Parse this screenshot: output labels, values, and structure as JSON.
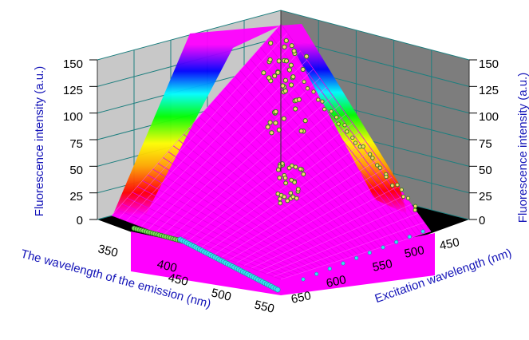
{
  "chart_data": {
    "type": "surface3d",
    "x_axis": {
      "label": "The wavelength of the emission (nm)",
      "ticks": [
        "350",
        "400",
        "450",
        "500",
        "550"
      ],
      "range": [
        330,
        565
      ]
    },
    "y_axis": {
      "label": "Excitation wavelength (nm)",
      "ticks": [
        "450",
        "500",
        "550",
        "600",
        "650"
      ],
      "range": [
        430,
        660
      ]
    },
    "z_axis": {
      "label_left": "Fluorescence intensity (a.u.)",
      "label_right": "Fluorescence intensity (a.u.)",
      "ticks": [
        "0",
        "25",
        "50",
        "75",
        "100",
        "125",
        "150"
      ],
      "range": [
        0,
        150
      ]
    },
    "grid": true,
    "colormap": [
      "#ff00ff",
      "#ff0000",
      "#ffa500",
      "#ffff00",
      "#00ff00",
      "#00ffff",
      "#0000ff",
      "#ff00ff"
    ],
    "colors": {
      "surface": "#ff00ff",
      "wall_left": "#c8c8c8",
      "wall_right": "#7d7d7d",
      "floor": "#000000",
      "wall_grid": "#1e7f7f",
      "axis_title": "#1414b8",
      "scatter_edge": "#2e7d20",
      "scatter_fill": "#f5d96b",
      "rayleigh_line": "#38e0f0"
    },
    "peaks": [
      {
        "emission": 515,
        "excitation": 470,
        "intensity": 148
      },
      {
        "emission": 540,
        "excitation": 520,
        "intensity": 60
      }
    ]
  }
}
